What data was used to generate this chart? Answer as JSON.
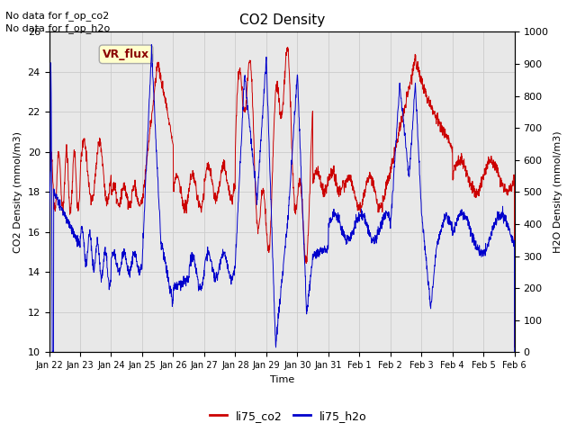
{
  "title": "CO2 Density",
  "xlabel": "Time",
  "ylabel_left": "CO2 Density (mmol/m3)",
  "ylabel_right": "H2O Density (mmol/m3)",
  "top_text_1": "No data for f_op_co2",
  "top_text_2": "No data for f_op_h2o",
  "legend_box_text": "VR_flux",
  "legend_box_facecolor": "#ffffcc",
  "legend_box_edgecolor": "#aaaaaa",
  "left_ylim": [
    10,
    26
  ],
  "right_ylim": [
    0,
    1000
  ],
  "left_yticks": [
    10,
    12,
    14,
    16,
    18,
    20,
    22,
    24,
    26
  ],
  "right_yticks": [
    0,
    100,
    200,
    300,
    400,
    500,
    600,
    700,
    800,
    900,
    1000
  ],
  "grid_color": "#cccccc",
  "bg_color": "#e8e8e8",
  "line_co2_color": "#cc0000",
  "line_h2o_color": "#0000cc",
  "xtick_labels": [
    "Jan 22",
    "Jan 23",
    "Jan 24",
    "Jan 25",
    "Jan 26",
    "Jan 27",
    "Jan 28",
    "Jan 29",
    "Jan 30",
    "Jan 31",
    "Feb 1",
    "Feb 2",
    "Feb 3",
    "Feb 4",
    "Feb 5",
    "Feb 6"
  ],
  "figwidth": 6.4,
  "figheight": 4.8,
  "dpi": 100
}
